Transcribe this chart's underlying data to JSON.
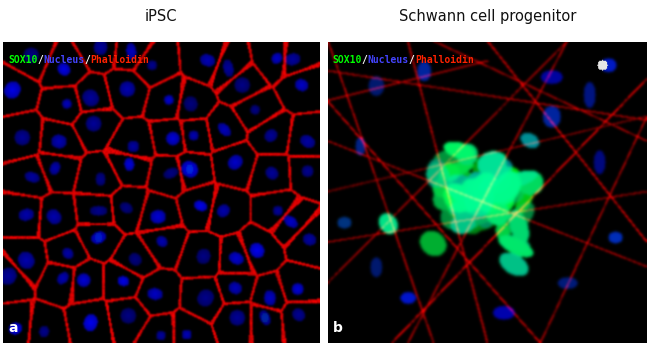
{
  "title_left": "iPSC",
  "title_right": "Schwann cell progenitor",
  "label_parts": [
    {
      "text": "SOX10",
      "color": "#00ff00"
    },
    {
      "text": "/",
      "color": "#ffffff"
    },
    {
      "text": "Nucleus",
      "color": "#4444ff"
    },
    {
      "text": "/",
      "color": "#ffffff"
    },
    {
      "text": "Phalloidin",
      "color": "#ff2200"
    }
  ],
  "panel_a_label": "a",
  "panel_b_label": "b",
  "title_color": "#111111",
  "title_fontsize": 10.5,
  "label_fontsize": 7,
  "panel_label_fontsize": 10,
  "fig_width": 6.49,
  "fig_height": 3.46,
  "dpi": 100,
  "white_bg_color": "#ffffff"
}
